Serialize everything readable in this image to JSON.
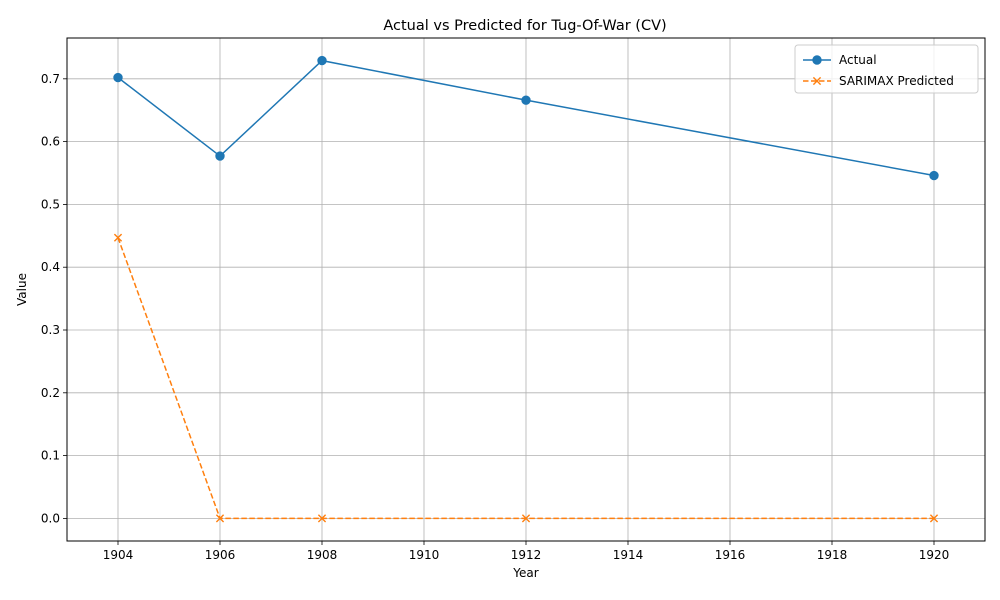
{
  "chart_data": {
    "type": "line",
    "title": "Actual vs Predicted for Tug-Of-War (CV)",
    "xlabel": "Year",
    "ylabel": "Value",
    "x": [
      1904,
      1906,
      1908,
      1912,
      1920
    ],
    "xlim": [
      1903,
      1921
    ],
    "ylim": [
      -0.036,
      0.765
    ],
    "xticks": [
      1904,
      1906,
      1908,
      1910,
      1912,
      1914,
      1916,
      1918,
      1920
    ],
    "yticks": [
      0.0,
      0.1,
      0.2,
      0.3,
      0.4,
      0.5,
      0.6,
      0.7
    ],
    "grid": true,
    "legend_position": "top-right",
    "series": [
      {
        "name": "Actual",
        "values": [
          0.702,
          0.577,
          0.729,
          0.666,
          0.546
        ],
        "color": "#1f77b4",
        "line_style": "solid",
        "marker": "circle"
      },
      {
        "name": "SARIMAX Predicted",
        "values": [
          0.447,
          0.0,
          0.0,
          0.0,
          0.0
        ],
        "color": "#ff7f0e",
        "line_style": "dashed",
        "marker": "x"
      }
    ]
  }
}
